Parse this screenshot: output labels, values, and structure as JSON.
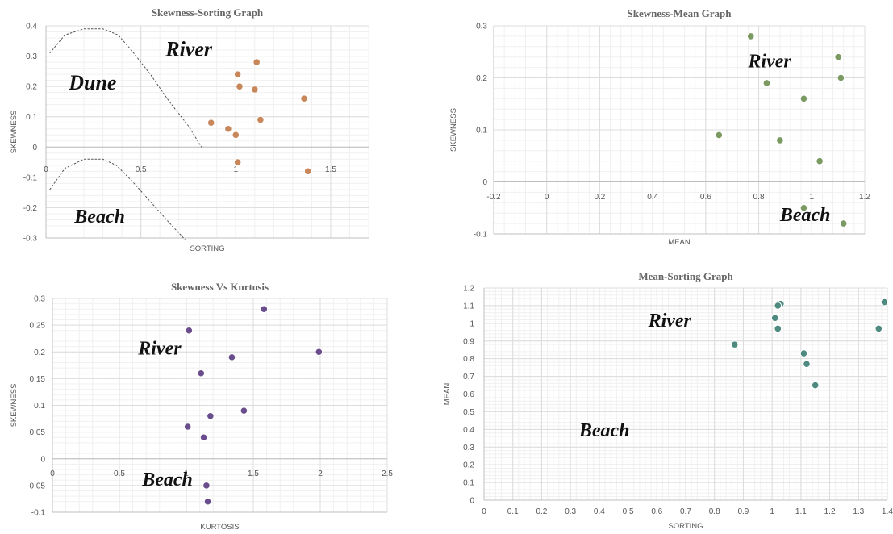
{
  "chart_data": [
    {
      "id": "skewness_sorting",
      "type": "scatter",
      "title": "Skewness-Sorting Graph",
      "xlabel": "SORTING",
      "ylabel": "SKEWNESS",
      "xlim": [
        0,
        1.7
      ],
      "ylim": [
        -0.3,
        0.4
      ],
      "xticks": [
        0,
        0.5,
        1,
        1.5
      ],
      "yticks": [
        0.4,
        0.3,
        0.2,
        0.1,
        0,
        -0.1,
        -0.2,
        -0.3
      ],
      "grid": true,
      "point_color": "#c8875a",
      "x": [
        0.87,
        0.96,
        1.0,
        1.02,
        1.01,
        1.1,
        1.11,
        1.13,
        1.36,
        1.38,
        1.01
      ],
      "y": [
        0.08,
        0.06,
        0.04,
        0.2,
        0.24,
        0.19,
        0.28,
        0.09,
        0.16,
        -0.08,
        -0.05
      ],
      "regions": [
        {
          "label": "River",
          "x": 0.63,
          "y": 0.3
        },
        {
          "label": "Dune",
          "x": 0.12,
          "y": 0.19
        },
        {
          "label": "Beach",
          "x": 0.15,
          "y": -0.25
        }
      ],
      "boundaries": [
        {
          "x": [
            0.02,
            0.1,
            0.2,
            0.3,
            0.38,
            0.45,
            0.55,
            0.65,
            0.75,
            0.82
          ],
          "y": [
            0.31,
            0.37,
            0.39,
            0.39,
            0.37,
            0.32,
            0.24,
            0.15,
            0.07,
            0.0
          ]
        },
        {
          "x": [
            0.02,
            0.1,
            0.2,
            0.3,
            0.37,
            0.45,
            0.55,
            0.65,
            0.74
          ],
          "y": [
            -0.14,
            -0.07,
            -0.04,
            -0.04,
            -0.06,
            -0.11,
            -0.18,
            -0.25,
            -0.31
          ]
        }
      ]
    },
    {
      "id": "skewness_mean",
      "type": "scatter",
      "title": "Skewness-Mean Graph",
      "xlabel": "MEAN",
      "ylabel": "SKEWNESS",
      "xlim": [
        -0.2,
        1.2
      ],
      "ylim": [
        -0.1,
        0.3
      ],
      "xticks": [
        -0.2,
        0,
        0.2,
        0.4,
        0.6,
        0.8,
        1,
        1.2
      ],
      "yticks": [
        0.3,
        0.2,
        0.1,
        0,
        -0.1
      ],
      "grid": true,
      "point_color": "#7a9a62",
      "x": [
        0.77,
        1.1,
        1.11,
        0.83,
        0.97,
        0.65,
        0.88,
        1.03,
        0.97,
        1.12
      ],
      "y": [
        0.28,
        0.24,
        0.2,
        0.19,
        0.16,
        0.09,
        0.08,
        0.04,
        -0.05,
        -0.08
      ],
      "regions": [
        {
          "label": "River",
          "x": 0.76,
          "y": 0.22
        },
        {
          "label": "Beach",
          "x": 0.88,
          "y": -0.075
        }
      ],
      "boundaries": []
    },
    {
      "id": "skewness_kurtosis",
      "type": "scatter",
      "title": "Skewness Vs Kurtosis",
      "xlabel": "KURTOSIS",
      "ylabel": "SKEWNESS",
      "xlim": [
        0,
        2.5
      ],
      "ylim": [
        -0.1,
        0.3
      ],
      "xticks": [
        0,
        0.5,
        1,
        1.5,
        2,
        2.5
      ],
      "yticks": [
        0.3,
        0.25,
        0.2,
        0.15,
        0.1,
        0.05,
        0,
        -0.05,
        -0.1
      ],
      "grid": true,
      "point_color": "#6a4d8c",
      "x": [
        1.58,
        1.02,
        1.99,
        1.34,
        1.11,
        1.43,
        1.18,
        1.01,
        1.13,
        1.15,
        1.16
      ],
      "y": [
        0.28,
        0.24,
        0.2,
        0.19,
        0.16,
        0.09,
        0.08,
        0.06,
        0.04,
        -0.05,
        -0.08
      ],
      "regions": [
        {
          "label": "River",
          "x": 0.64,
          "y": 0.195
        },
        {
          "label": "Beach",
          "x": 0.67,
          "y": -0.05
        }
      ],
      "boundaries": []
    },
    {
      "id": "mean_sorting",
      "type": "scatter",
      "title": "Mean-Sorting Graph",
      "xlabel": "SORTING",
      "ylabel": "MEAN",
      "xlim": [
        0,
        1.4
      ],
      "ylim": [
        0,
        1.2
      ],
      "xticks": [
        0,
        0.1,
        0.2,
        0.3,
        0.4,
        0.5,
        0.6,
        0.7,
        0.8,
        0.9,
        1,
        1.1,
        1.2,
        1.3,
        1.4
      ],
      "yticks": [
        1.2,
        1.1,
        1.0,
        0.9,
        0.8,
        0.7,
        0.6,
        0.5,
        0.4,
        0.3,
        0.2,
        0.1,
        0
      ],
      "grid": true,
      "point_color": "#4f8a80",
      "x": [
        1.39,
        1.03,
        1.02,
        1.01,
        1.02,
        1.37,
        0.87,
        1.11,
        1.12,
        1.15
      ],
      "y": [
        1.12,
        1.11,
        1.1,
        1.03,
        0.97,
        0.97,
        0.88,
        0.83,
        0.77,
        0.65
      ],
      "regions": [
        {
          "label": "River",
          "x": 0.57,
          "y": 0.98
        },
        {
          "label": "Beach",
          "x": 0.33,
          "y": 0.36
        }
      ],
      "boundaries": []
    }
  ]
}
